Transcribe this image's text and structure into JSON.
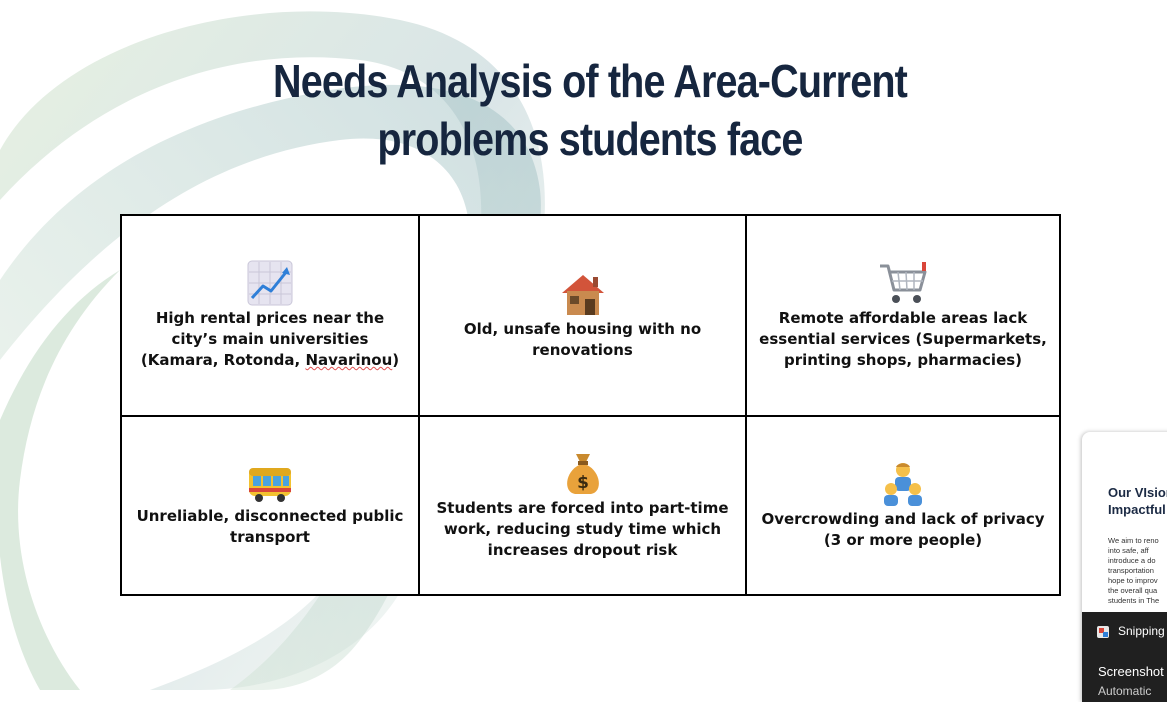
{
  "slide": {
    "title_line1": "Needs Analysis of the Area-Current",
    "title_line2": "problems students face",
    "cells": [
      {
        "icon": "chart-increasing-icon",
        "text_pre": "High rental prices near the city’s main universities (Kamara, Rotonda, ",
        "text_spell": "Navarinou",
        "text_post": ")"
      },
      {
        "icon": "house-icon",
        "text": "Old, unsafe housing with no renovations"
      },
      {
        "icon": "shopping-cart-icon",
        "text": "Remote affordable areas lack essential services (Supermarkets, printing shops, pharmacies)"
      },
      {
        "icon": "bus-icon",
        "text": "Unreliable, disconnected public transport"
      },
      {
        "icon": "money-bag-icon",
        "text": "Students are forced into part-time work, reducing study time which increases dropout risk"
      },
      {
        "icon": "family-icon",
        "text": "Overcrowding and lack of privacy (3 or more people)"
      }
    ],
    "colors": {
      "title": "#16263f",
      "border": "#000000",
      "swirl_teal": "#a9c4c8",
      "swirl_green": "#cfe3c4"
    }
  },
  "side_panel": {
    "heading_line1": "Our VIsion",
    "heading_line2": "Impactful",
    "body_lines": [
      "We aim to reno",
      "into safe, aff",
      "introduce a do",
      "transportation",
      "hope to improv",
      "the overall qua",
      "students in The"
    ]
  },
  "notification": {
    "app_name": "Snipping",
    "app_icon": "snipping-tool-icon",
    "title": "Screenshot",
    "subtitle": "Automatic"
  }
}
